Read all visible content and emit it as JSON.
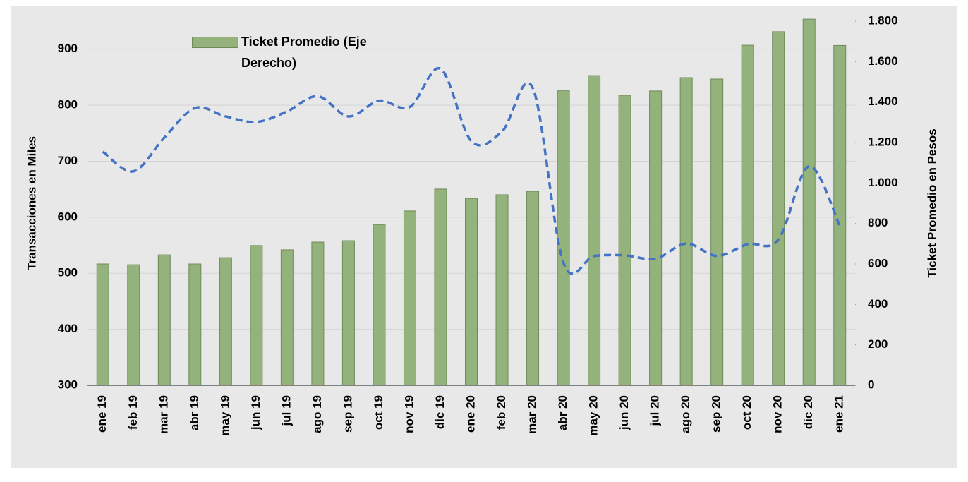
{
  "chart_data": {
    "type": "bar-line",
    "categories": [
      "ene 19",
      "feb 19",
      "mar 19",
      "abr 19",
      "may 19",
      "jun 19",
      "jul 19",
      "ago 19",
      "sep 19",
      "oct 19",
      "nov 19",
      "dic 19",
      "ene 20",
      "feb 20",
      "mar 20",
      "abr 20",
      "may 20",
      "jun 20",
      "jul 20",
      "ago 20",
      "sep 20",
      "oct 20",
      "nov 20",
      "dic 20",
      "ene 21"
    ],
    "series": [
      {
        "name": "Ticket Promedio (Eje Derecho)",
        "type": "bar",
        "axis": "y2",
        "color": "#94b27c",
        "values": [
          600,
          596,
          645,
          600,
          631,
          691,
          670,
          708,
          715,
          795,
          862,
          970,
          924,
          942,
          959,
          1458,
          1531,
          1434,
          1455,
          1521,
          1514,
          1681,
          1748,
          1810,
          1680
        ]
      },
      {
        "type": "line",
        "axis": "y",
        "color": "#4472c4",
        "values": [
          717,
          682,
          742,
          795,
          780,
          770,
          789,
          816,
          780,
          808,
          797,
          865,
          736,
          753,
          831,
          519,
          531,
          532,
          526,
          553,
          531,
          552,
          560,
          691,
          585
        ]
      }
    ],
    "y_label": "Transacciones en Miles",
    "y2_label": "Ticket Promedio en Pesos",
    "ylim": [
      300,
      950
    ],
    "yticks": [
      300,
      400,
      500,
      600,
      700,
      800,
      900
    ],
    "y2lim": [
      0,
      1800
    ],
    "y2ticks": [
      0,
      200,
      400,
      600,
      800,
      {
        "value": 1000,
        "label": "1.000"
      },
      {
        "value": 1200,
        "label": "1.200"
      },
      {
        "value": 1400,
        "label": "1.400"
      },
      {
        "value": 1600,
        "label": "1.600"
      },
      {
        "value": 1800,
        "label": "1.800"
      }
    ],
    "grid": true,
    "legend": "top-left"
  }
}
